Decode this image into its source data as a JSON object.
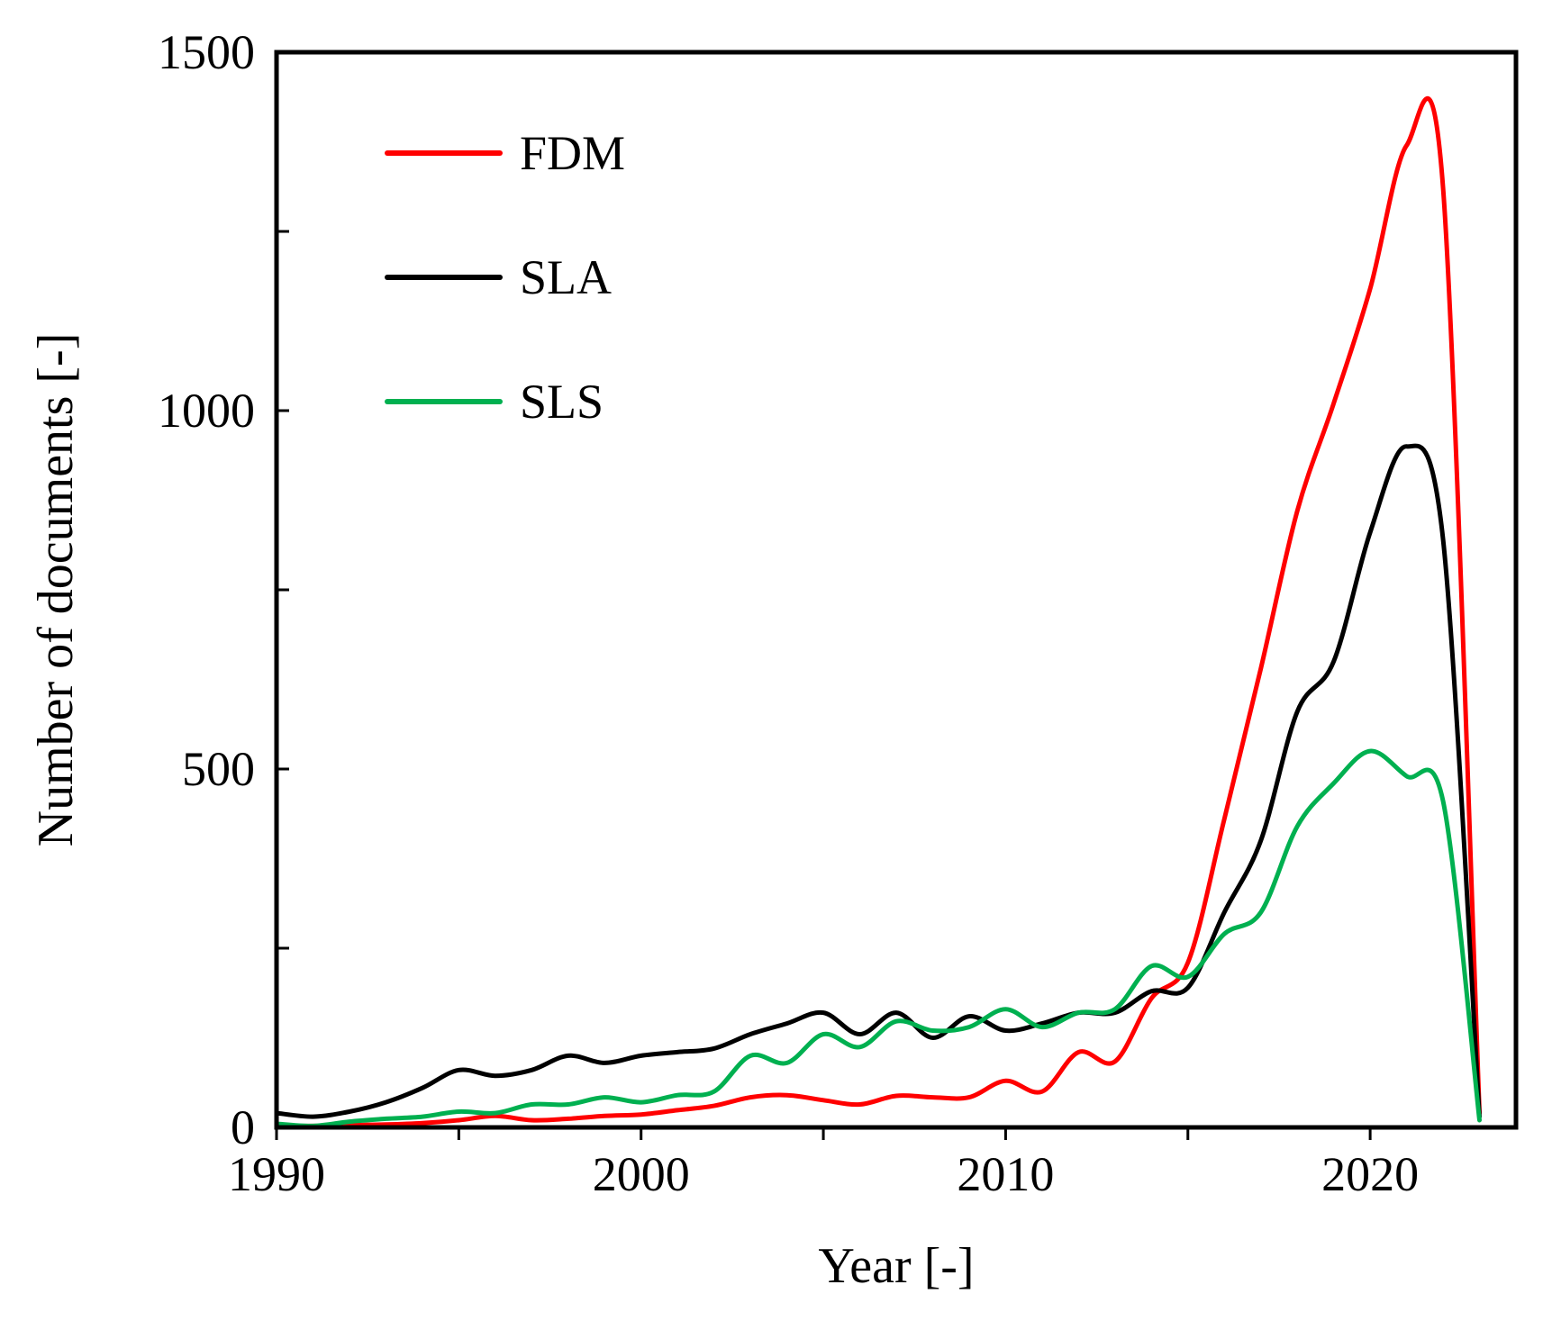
{
  "chart_data": {
    "type": "line",
    "title": "",
    "xlabel": "Year [-]",
    "ylabel": "Number of documents [-]",
    "xlim": [
      1990,
      2024
    ],
    "ylim": [
      0,
      1500
    ],
    "x_ticks": [
      1990,
      2000,
      2010,
      2020
    ],
    "y_ticks": [
      0,
      500,
      1000,
      1500
    ],
    "legend_position": "top-left",
    "grid": false,
    "x": [
      1990,
      1991,
      1992,
      1993,
      1994,
      1995,
      1996,
      1997,
      1998,
      1999,
      2000,
      2001,
      2002,
      2003,
      2004,
      2005,
      2006,
      2007,
      2008,
      2009,
      2010,
      2011,
      2012,
      2013,
      2014,
      2015,
      2016,
      2017,
      2018,
      2019,
      2020,
      2021,
      2022,
      2023
    ],
    "series": [
      {
        "name": "FDM",
        "color": "#ff0000",
        "values": [
          2,
          2,
          3,
          4,
          6,
          10,
          16,
          10,
          12,
          16,
          18,
          24,
          30,
          42,
          45,
          38,
          32,
          44,
          42,
          42,
          65,
          50,
          105,
          92,
          180,
          230,
          430,
          640,
          860,
          1010,
          1170,
          1370,
          1310,
          20
        ]
      },
      {
        "name": "SLA",
        "color": "#000000",
        "values": [
          20,
          15,
          22,
          35,
          55,
          80,
          72,
          80,
          100,
          90,
          100,
          105,
          110,
          130,
          145,
          160,
          130,
          160,
          125,
          155,
          135,
          145,
          160,
          160,
          190,
          195,
          300,
          400,
          580,
          650,
          830,
          950,
          820,
          15
        ]
      },
      {
        "name": "SLS",
        "color": "#00b050",
        "values": [
          5,
          2,
          8,
          12,
          15,
          22,
          20,
          32,
          32,
          42,
          35,
          45,
          50,
          100,
          90,
          130,
          112,
          148,
          135,
          140,
          165,
          140,
          160,
          165,
          225,
          210,
          270,
          300,
          420,
          480,
          525,
          490,
          455,
          10
        ]
      }
    ]
  }
}
